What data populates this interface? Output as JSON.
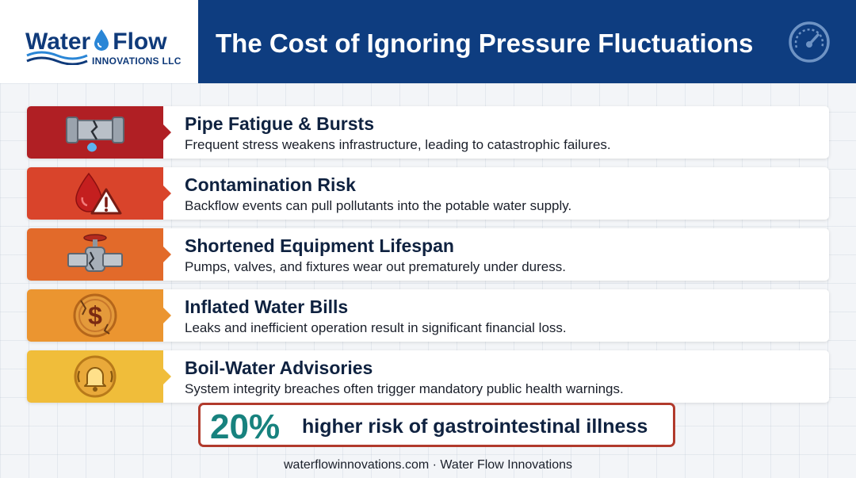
{
  "brand": {
    "name_part1": "Water",
    "name_part2": "Flow",
    "subtitle": "INNOVATIONS LLC",
    "icon": "water-drop-icon",
    "color": "#0f3a7a"
  },
  "header": {
    "title": "The Cost of Ignoring Pressure Fluctuations",
    "icon": "pressure-gauge-icon",
    "background": "#0e3d80"
  },
  "items": [
    {
      "title": "Pipe Fatigue & Bursts",
      "description": "Frequent stress weakens infrastructure, leading to catastrophic failures.",
      "icon": "burst-pipe-icon",
      "color": "#b01f24"
    },
    {
      "title": "Contamination Risk",
      "description": "Backflow events can pull pollutants into the potable water supply.",
      "icon": "contaminated-drop-warning-icon",
      "color": "#d9442b"
    },
    {
      "title": "Shortened Equipment Lifespan",
      "description": "Pumps, valves, and fixtures wear out prematurely under duress.",
      "icon": "cracked-valve-icon",
      "color": "#e26a2a"
    },
    {
      "title": "Inflated Water Bills",
      "description": "Leaks and inefficient operation result in significant financial loss.",
      "icon": "cracked-dollar-coin-icon",
      "color": "#eb9530"
    },
    {
      "title": "Boil-Water Advisories",
      "description": "System integrity breaches often trigger mandatory public health warnings.",
      "icon": "alarm-bell-icon",
      "color": "#f0bd3a"
    }
  ],
  "stat": {
    "value": "20%",
    "label": "higher risk of gastrointestinal illness",
    "value_color": "#17827e",
    "border_color": "#b13a2c"
  },
  "footer": {
    "text": "waterflowinnovations.com · Water Flow Innovations"
  }
}
